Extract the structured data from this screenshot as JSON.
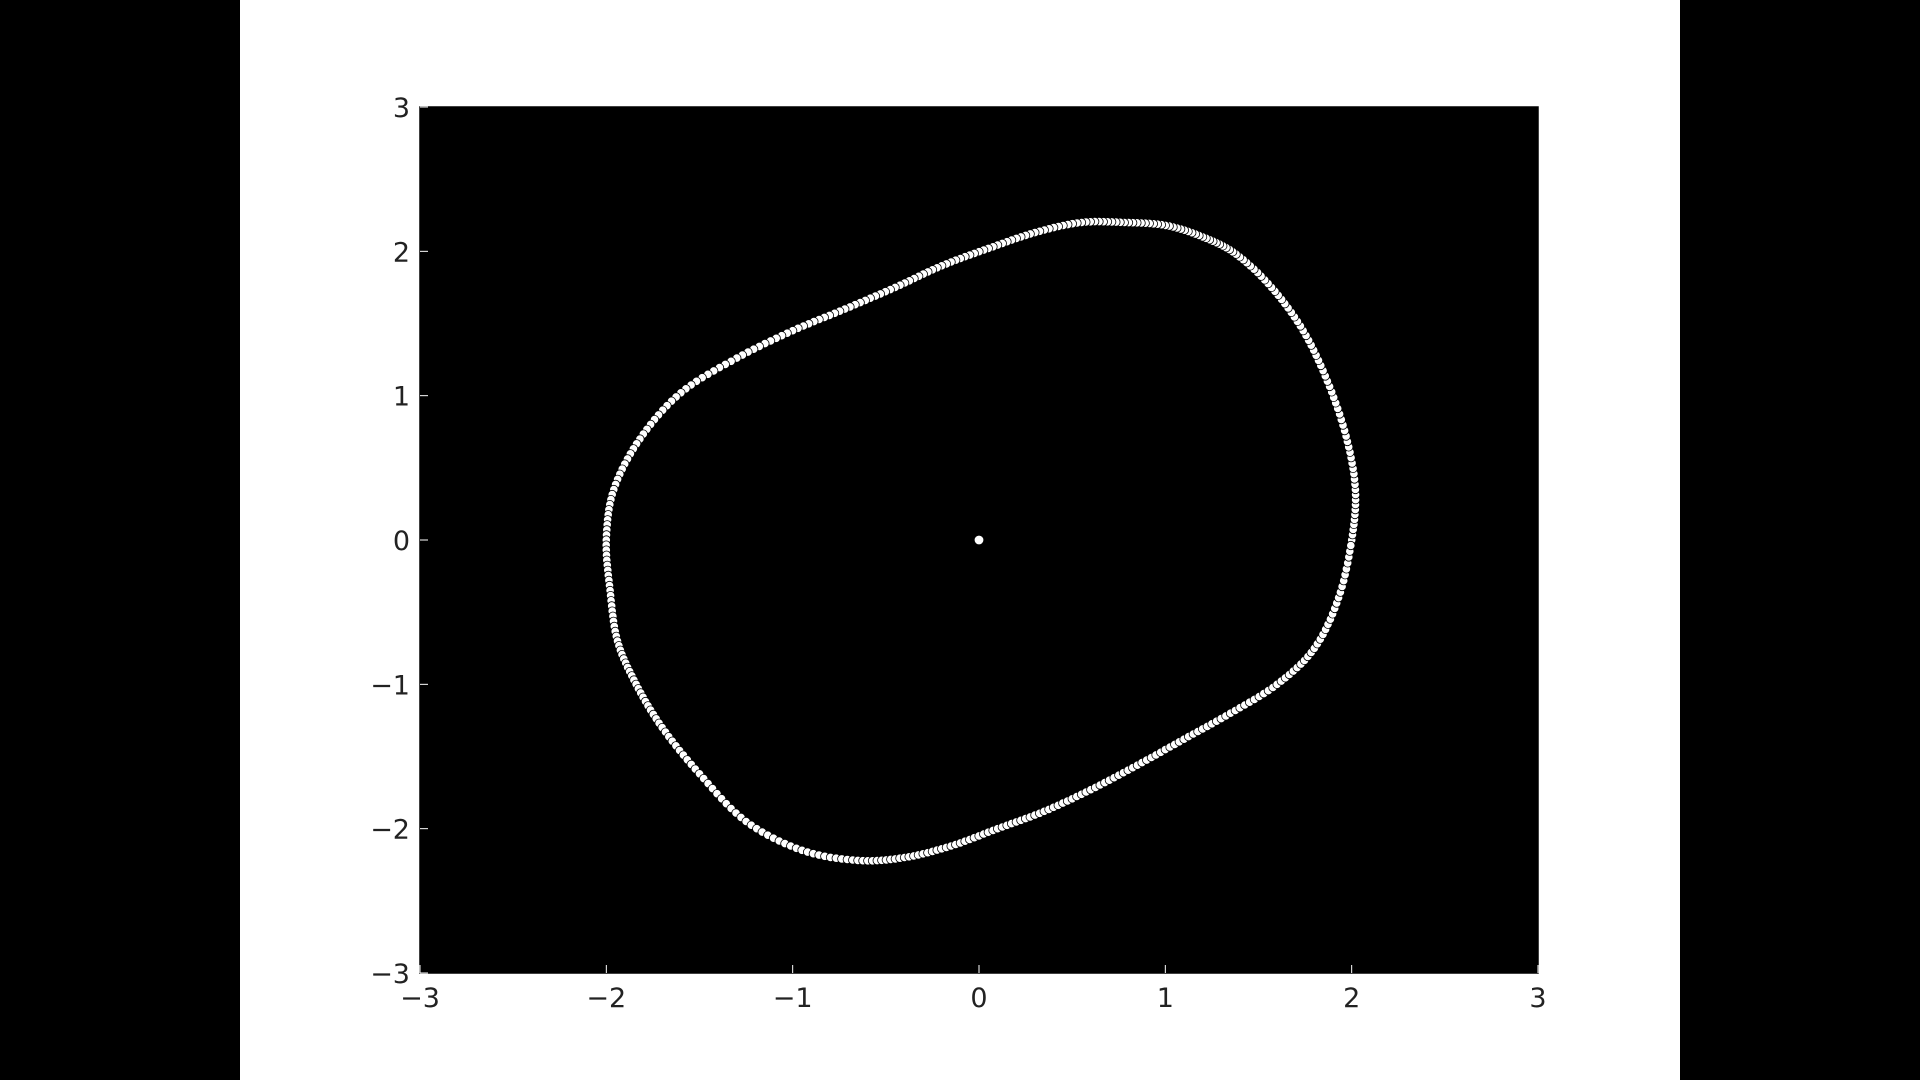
{
  "chart_data": {
    "type": "scatter",
    "title": "",
    "xlabel": "",
    "ylabel": "",
    "xlim": [
      -3,
      3
    ],
    "ylim": [
      -3,
      3
    ],
    "xticks": [
      -3,
      -2,
      -1,
      0,
      1,
      2,
      3
    ],
    "yticks": [
      -3,
      -2,
      -1,
      0,
      1,
      2,
      3
    ],
    "xtick_labels": [
      "−3",
      "−2",
      "−1",
      "0",
      "1",
      "2",
      "3"
    ],
    "ytick_labels": [
      "−3",
      "−2",
      "−1",
      "0",
      "1",
      "2",
      "3"
    ],
    "grid": false,
    "legend": "none",
    "colors": {
      "plot_background": "#000000",
      "figure_background": "#ffffff",
      "marker_fill": "#ffffff",
      "marker_edge": "#000000"
    },
    "series": [
      {
        "marker": "circle",
        "x": [
          2.0,
          2.02,
          1.97,
          1.87,
          1.74,
          1.57,
          1.38,
          1.2,
          1.0,
          0.78,
          0.55,
          0.3,
          0.05,
          -0.2,
          -0.45,
          -0.72,
          -1.0,
          -1.3,
          -1.6,
          -1.82,
          -1.96,
          -2.0,
          -1.98,
          -1.94,
          -1.84,
          -1.7,
          -1.5,
          -1.25,
          -0.95,
          -0.65,
          -0.4,
          -0.15,
          0.1,
          0.35,
          0.6,
          0.85,
          1.1,
          1.35,
          1.6,
          1.8,
          1.93,
          2.0
        ],
        "y": [
          0.0,
          0.35,
          0.72,
          1.1,
          1.45,
          1.75,
          1.98,
          2.1,
          2.18,
          2.2,
          2.2,
          2.13,
          2.02,
          1.9,
          1.75,
          1.6,
          1.45,
          1.26,
          1.02,
          0.7,
          0.35,
          0.0,
          -0.35,
          -0.7,
          -1.0,
          -1.3,
          -1.62,
          -1.95,
          -2.15,
          -2.22,
          -2.2,
          -2.12,
          -2.0,
          -1.88,
          -1.73,
          -1.56,
          -1.38,
          -1.2,
          -1.0,
          -0.75,
          -0.4,
          0.0
        ]
      },
      {
        "marker": "circle",
        "x": [
          0.0
        ],
        "y": [
          0.0
        ]
      }
    ]
  }
}
